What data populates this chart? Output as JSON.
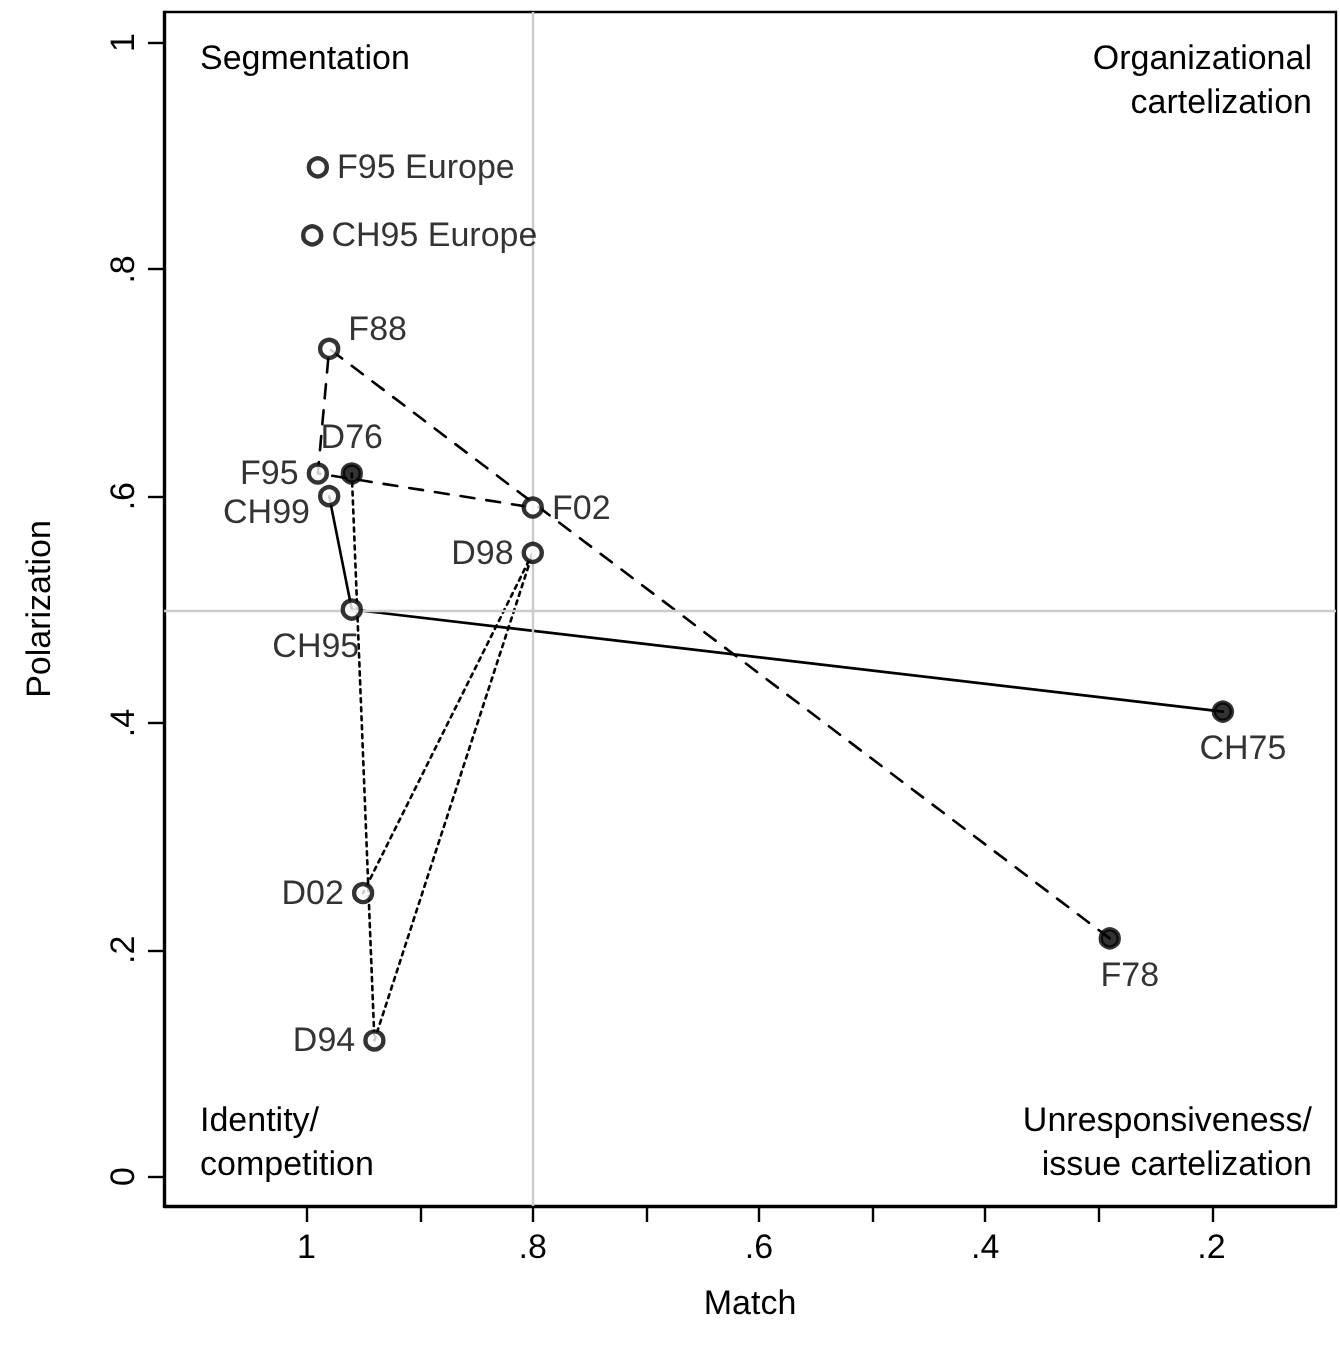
{
  "chart_data": {
    "type": "scatter",
    "xlabel": "Match",
    "ylabel": "Polarization",
    "xlim": [
      1.126,
      0.09
    ],
    "ylim": [
      -0.026,
      1.027
    ],
    "xticks": [
      1,
      {
        "value": 0.9,
        "label": null
      },
      {
        "value": 0.8,
        "label": ".8"
      },
      {
        "value": 0.7,
        "label": null
      },
      {
        "value": 0.6,
        "label": ".6"
      },
      {
        "value": 0.5,
        "label": null
      },
      {
        "value": 0.4,
        "label": ".4"
      },
      {
        "value": 0.3,
        "label": null
      },
      {
        "value": 0.2,
        "label": ".2"
      }
    ],
    "yticks": [
      0,
      {
        "value": 0.2,
        "label": ".2"
      },
      {
        "value": 0.4,
        "label": ".4"
      },
      {
        "value": 0.6,
        "label": ".6"
      },
      {
        "value": 0.8,
        "label": ".8"
      },
      1
    ],
    "grid": false,
    "ref_lines": [
      {
        "axis": "x",
        "value": 0.8,
        "label": null,
        "color": "#cccccc"
      },
      {
        "axis": "y",
        "value": 0.5,
        "label": null,
        "color": "#cccccc"
      }
    ],
    "annotations": [
      "Segmentation",
      "Organizational\ncartelization",
      "Identity/\ncompetition",
      "Unresponsiveness/\nissue cartelization"
    ],
    "series": [
      {
        "type": "line",
        "color": "#000000",
        "line_style": "solid",
        "marker": "none",
        "x": [
          0.19,
          0.96,
          0.98
        ],
        "values": [
          0.41,
          0.5,
          0.6
        ]
      },
      {
        "type": "line",
        "color": "#000000",
        "line_style": "dashed",
        "marker": "none",
        "x": [
          0.29,
          0.98,
          0.99,
          0.8
        ],
        "values": [
          0.21,
          0.73,
          0.62,
          0.59
        ]
      },
      {
        "type": "line",
        "color": "#000000",
        "line_style": "dotted",
        "marker": "none",
        "x": [
          0.96,
          0.94,
          0.8,
          0.95
        ],
        "values": [
          0.62,
          0.12,
          0.55,
          0.25
        ]
      },
      {
        "color": "#000000",
        "marker": "circle",
        "x": [
          0.99,
          0.995,
          0.98,
          0.99,
          0.96,
          0.98,
          0.8,
          0.8,
          0.96,
          0.95,
          0.94,
          0.19,
          0.29
        ],
        "values": [
          0.89,
          0.83,
          0.73,
          0.62,
          0.62,
          0.6,
          0.59,
          0.55,
          0.5,
          0.25,
          0.12,
          0.41,
          0.21
        ],
        "colors": [
          "#ffffff",
          "#ffffff",
          "#ffffff",
          "#ffffff",
          "#000000",
          "#ffffff",
          "#ffffff",
          "#ffffff",
          "#ffffff",
          "#ffffff",
          "#ffffff",
          "#000000",
          "#000000"
        ],
        "value_labels": [
          "F95 Europe",
          "CH95 Europe",
          "F88",
          "F95",
          "D76",
          "CH99",
          "F02",
          "D98",
          "CH95",
          "D02",
          "D94",
          "CH75",
          "F78"
        ]
      }
    ]
  }
}
